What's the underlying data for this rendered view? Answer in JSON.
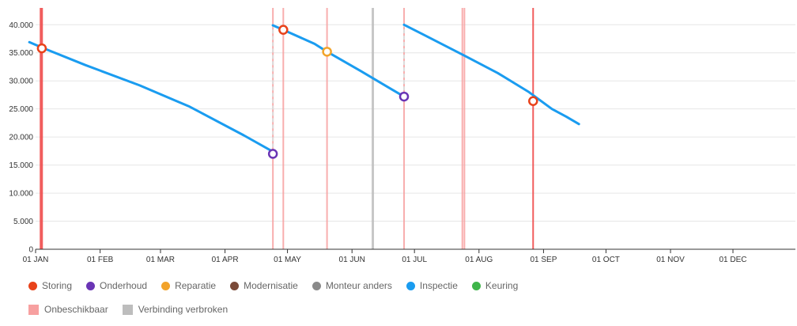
{
  "chart_data": {
    "type": "line",
    "x_type": "date",
    "year": 2024,
    "y_ticks": [
      "0",
      "5.000",
      "10.000",
      "15.000",
      "20.000",
      "25.000",
      "30.000",
      "35.000",
      "40.000"
    ],
    "ylim": [
      0,
      43000
    ],
    "x_ticks": [
      {
        "date": "2024-01-01",
        "label": "01 JAN"
      },
      {
        "date": "2024-02-01",
        "label": "01 FEB"
      },
      {
        "date": "2024-03-01",
        "label": "01 MAR"
      },
      {
        "date": "2024-04-01",
        "label": "01 APR"
      },
      {
        "date": "2024-05-01",
        "label": "01 MAY"
      },
      {
        "date": "2024-06-01",
        "label": "01 JUN"
      },
      {
        "date": "2024-07-01",
        "label": "01 JUL"
      },
      {
        "date": "2024-08-01",
        "label": "01 AUG"
      },
      {
        "date": "2024-09-01",
        "label": "01 SEP"
      },
      {
        "date": "2024-10-01",
        "label": "01 OCT"
      },
      {
        "date": "2024-11-01",
        "label": "01 NOV"
      },
      {
        "date": "2024-12-01",
        "label": "01 DEC"
      }
    ],
    "xlim": [
      "2024-01-01",
      "2024-12-31"
    ],
    "grid": true,
    "series": [
      {
        "name": "Inspectie",
        "color": "#1a9cf0",
        "segments": [
          [
            [
              "2023-12-29",
              36900
            ],
            [
              "2024-01-05",
              35800
            ],
            [
              "2024-01-25",
              32800
            ],
            [
              "2024-02-20",
              29200
            ],
            [
              "2024-03-15",
              25400
            ],
            [
              "2024-04-10",
              20300
            ],
            [
              "2024-04-23",
              17600
            ],
            [
              "2024-04-24",
              17000
            ]
          ],
          [
            [
              "2024-04-24",
              39900
            ],
            [
              "2024-04-29",
              39100
            ],
            [
              "2024-05-14",
              36600
            ],
            [
              "2024-05-20",
              35200
            ],
            [
              "2024-06-05",
              31800
            ],
            [
              "2024-06-20",
              28500
            ],
            [
              "2024-06-26",
              27200
            ]
          ],
          [
            [
              "2024-06-26",
              40000
            ],
            [
              "2024-07-05",
              38300
            ],
            [
              "2024-07-25",
              34500
            ],
            [
              "2024-08-10",
              31400
            ],
            [
              "2024-08-25",
              28000
            ],
            [
              "2024-09-05",
              25000
            ],
            [
              "2024-09-12",
              23600
            ],
            [
              "2024-09-18",
              22300
            ]
          ]
        ]
      }
    ],
    "event_markers": [
      {
        "type": "Storing",
        "date": "2024-01-04",
        "value": 35800
      },
      {
        "type": "Onderhoud",
        "date": "2024-04-24",
        "value": 17000
      },
      {
        "type": "Storing",
        "date": "2024-04-29",
        "value": 39100
      },
      {
        "type": "Reparatie",
        "date": "2024-05-20",
        "value": 35200
      },
      {
        "type": "Onderhoud",
        "date": "2024-06-26",
        "value": 27200
      },
      {
        "type": "Storing",
        "date": "2024-08-27",
        "value": 26400
      }
    ],
    "connectors": [
      {
        "date": "2024-04-24",
        "from": 17000,
        "to": 39900
      },
      {
        "date": "2024-06-26",
        "from": 27200,
        "to": 40000
      }
    ],
    "bands": [
      {
        "type": "Onbeschikbaar",
        "start": "2024-01-03",
        "end": "2024-01-04",
        "strong": true
      },
      {
        "type": "Onbeschikbaar",
        "start": "2024-04-24",
        "end": "2024-04-24",
        "strong": false
      },
      {
        "type": "Onbeschikbaar",
        "start": "2024-04-29",
        "end": "2024-04-29",
        "strong": false
      },
      {
        "type": "Onbeschikbaar",
        "start": "2024-05-20",
        "end": "2024-05-20",
        "strong": false
      },
      {
        "type": "Verbinding verbroken",
        "start": "2024-06-11",
        "end": "2024-06-11",
        "strong": false
      },
      {
        "type": "Onbeschikbaar",
        "start": "2024-06-26",
        "end": "2024-06-26",
        "strong": false
      },
      {
        "type": "Onbeschikbaar",
        "start": "2024-07-24",
        "end": "2024-07-24",
        "strong": false
      },
      {
        "type": "Onbeschikbaar",
        "start": "2024-07-25",
        "end": "2024-07-25",
        "strong": false
      },
      {
        "type": "Onbeschikbaar",
        "start": "2024-08-27",
        "end": "2024-08-27",
        "strong": true
      }
    ],
    "legend_placement": "bottom-left"
  },
  "legend": {
    "events": [
      {
        "label": "Storing",
        "color": "#e8421a"
      },
      {
        "label": "Onderhoud",
        "color": "#6a35b5"
      },
      {
        "label": "Reparatie",
        "color": "#f2a32a"
      },
      {
        "label": "Modernisatie",
        "color": "#7a4a38"
      },
      {
        "label": "Monteur anders",
        "color": "#8a8a8a"
      },
      {
        "label": "Inspectie",
        "color": "#1a9cf0"
      },
      {
        "label": "Keuring",
        "color": "#3fb54a"
      }
    ],
    "bands": [
      {
        "label": "Onbeschikbaar",
        "color": "#f7a0a0"
      },
      {
        "label": "Verbinding verbroken",
        "color": "#bdbdbd"
      }
    ]
  },
  "colors": {
    "Storing": "#e8421a",
    "Onderhoud": "#6a35b5",
    "Reparatie": "#f2a32a",
    "Onbeschikbaar": "#f7a0a0",
    "Onbeschikbaar_strong": "#ef4b4b",
    "Verbinding verbroken": "#bdbdbd",
    "connector": "#dcdcdc",
    "grid": "#e6e6e6",
    "axis": "#333333"
  }
}
